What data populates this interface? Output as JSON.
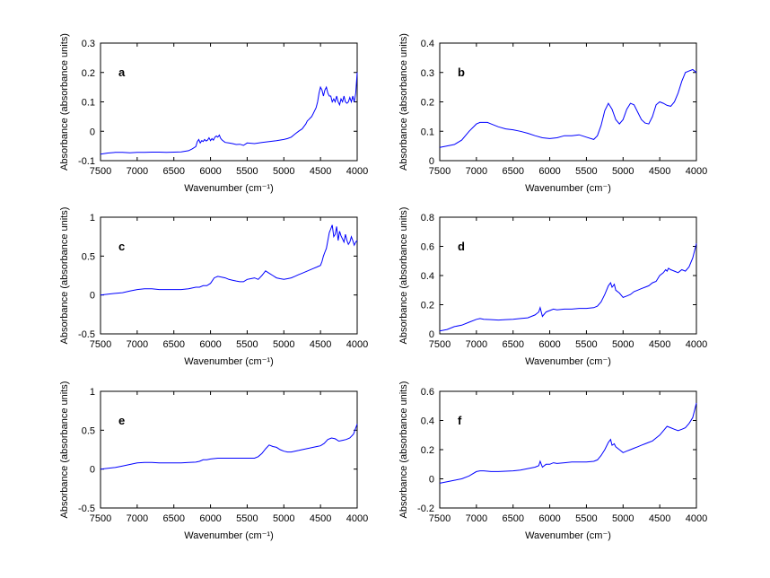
{
  "chart_data": [
    {
      "id": "a",
      "type": "line",
      "panel_label": "a",
      "xlabel": "Wavenumber (cm⁻¹)",
      "ylabel": "Absorbance (absorbance units)",
      "xlim": [
        7500,
        4000
      ],
      "x_reversed": true,
      "ylim": [
        -0.1,
        0.3
      ],
      "xticks": [
        7500,
        7000,
        6500,
        6000,
        5500,
        5000,
        4500,
        4000
      ],
      "xtick_labels": [
        "7500",
        "7000",
        "6500",
        "6000",
        "5500",
        "5000",
        "4500",
        "4000"
      ],
      "yticks": [
        -0.1,
        0,
        0.1,
        0.2,
        0.3
      ],
      "ytick_labels": [
        "-0.1",
        "0",
        "0.1",
        "0.2",
        "0.3"
      ],
      "color": "#0000ff",
      "series": [
        {
          "x": [
            7500,
            7400,
            7300,
            7200,
            7100,
            7000,
            6900,
            6800,
            6700,
            6600,
            6500,
            6400,
            6300,
            6250,
            6200,
            6180,
            6160,
            6140,
            6120,
            6100,
            6080,
            6060,
            6040,
            6020,
            6000,
            5980,
            5960,
            5940,
            5920,
            5900,
            5880,
            5860,
            5840,
            5800,
            5750,
            5700,
            5650,
            5600,
            5550,
            5500,
            5400,
            5300,
            5200,
            5100,
            5000,
            4950,
            4900,
            4850,
            4800,
            4750,
            4700,
            4680,
            4660,
            4640,
            4620,
            4600,
            4580,
            4560,
            4540,
            4520,
            4500,
            4480,
            4460,
            4440,
            4420,
            4400,
            4380,
            4360,
            4340,
            4320,
            4300,
            4280,
            4260,
            4240,
            4220,
            4200,
            4180,
            4160,
            4140,
            4120,
            4100,
            4080,
            4060,
            4040,
            4020,
            4000
          ],
          "y": [
            -0.078,
            -0.074,
            -0.072,
            -0.072,
            -0.073,
            -0.072,
            -0.072,
            -0.071,
            -0.071,
            -0.072,
            -0.071,
            -0.07,
            -0.066,
            -0.06,
            -0.052,
            -0.035,
            -0.028,
            -0.04,
            -0.032,
            -0.035,
            -0.028,
            -0.033,
            -0.03,
            -0.022,
            -0.032,
            -0.025,
            -0.03,
            -0.02,
            -0.016,
            -0.02,
            -0.013,
            -0.025,
            -0.03,
            -0.038,
            -0.04,
            -0.042,
            -0.045,
            -0.044,
            -0.048,
            -0.04,
            -0.042,
            -0.038,
            -0.035,
            -0.032,
            -0.028,
            -0.025,
            -0.02,
            -0.01,
            0.0,
            0.008,
            0.025,
            0.035,
            0.04,
            0.045,
            0.05,
            0.06,
            0.07,
            0.08,
            0.1,
            0.13,
            0.15,
            0.14,
            0.12,
            0.14,
            0.15,
            0.13,
            0.12,
            0.12,
            0.1,
            0.11,
            0.1,
            0.12,
            0.1,
            0.09,
            0.11,
            0.1,
            0.12,
            0.1,
            0.095,
            0.1,
            0.115,
            0.1,
            0.12,
            0.1,
            0.13,
            0.2
          ]
        }
      ]
    },
    {
      "id": "b",
      "type": "line",
      "panel_label": "b",
      "xlabel": "Wavenumber (cm⁻)",
      "ylabel": "Absorbance (absorbance units)",
      "xlim": [
        7500,
        4000
      ],
      "x_reversed": true,
      "ylim": [
        0,
        0.4
      ],
      "xticks": [
        7500,
        7000,
        6500,
        6000,
        5500,
        5000,
        4500,
        4000
      ],
      "xtick_labels": [
        "7500",
        "7000",
        "6500",
        "6000",
        "5500",
        "5000",
        "4500",
        "4000"
      ],
      "yticks": [
        0,
        0.1,
        0.2,
        0.3,
        0.4
      ],
      "ytick_labels": [
        "0",
        "0.1",
        "0.2",
        "0.3",
        "0.4"
      ],
      "color": "#0000ff",
      "series": [
        {
          "x": [
            7500,
            7400,
            7300,
            7200,
            7100,
            7000,
            6950,
            6900,
            6850,
            6800,
            6700,
            6600,
            6500,
            6400,
            6300,
            6200,
            6100,
            6000,
            5900,
            5800,
            5700,
            5600,
            5500,
            5400,
            5350,
            5300,
            5250,
            5200,
            5150,
            5100,
            5050,
            5000,
            4950,
            4900,
            4850,
            4800,
            4750,
            4700,
            4650,
            4600,
            4550,
            4500,
            4450,
            4400,
            4350,
            4300,
            4250,
            4200,
            4150,
            4100,
            4050,
            4000
          ],
          "y": [
            0.045,
            0.05,
            0.055,
            0.07,
            0.1,
            0.125,
            0.13,
            0.13,
            0.13,
            0.125,
            0.115,
            0.108,
            0.105,
            0.1,
            0.093,
            0.085,
            0.078,
            0.075,
            0.078,
            0.085,
            0.085,
            0.088,
            0.08,
            0.072,
            0.085,
            0.12,
            0.17,
            0.195,
            0.175,
            0.14,
            0.125,
            0.14,
            0.175,
            0.195,
            0.19,
            0.165,
            0.14,
            0.128,
            0.125,
            0.15,
            0.19,
            0.2,
            0.195,
            0.188,
            0.185,
            0.2,
            0.23,
            0.27,
            0.3,
            0.305,
            0.31,
            0.3
          ]
        }
      ]
    },
    {
      "id": "c",
      "type": "line",
      "panel_label": "c",
      "xlabel": "Wavenumber (cm⁻¹)",
      "ylabel": "Absorbance (absorbance units)",
      "xlim": [
        7500,
        4000
      ],
      "x_reversed": true,
      "ylim": [
        -0.5,
        1
      ],
      "xticks": [
        7500,
        7000,
        6500,
        6000,
        5500,
        5000,
        4500,
        4000
      ],
      "xtick_labels": [
        "7500",
        "7000",
        "6500",
        "6000",
        "5500",
        "5000",
        "4500",
        "4000"
      ],
      "yticks": [
        -0.5,
        0,
        0.5,
        1
      ],
      "ytick_labels": [
        "-0.5",
        "0",
        "0.5",
        "1"
      ],
      "color": "#0000ff",
      "series": [
        {
          "x": [
            7500,
            7400,
            7300,
            7200,
            7100,
            7000,
            6900,
            6800,
            6700,
            6600,
            6500,
            6400,
            6300,
            6200,
            6150,
            6100,
            6050,
            6000,
            5950,
            5900,
            5850,
            5800,
            5750,
            5700,
            5650,
            5600,
            5550,
            5500,
            5450,
            5400,
            5350,
            5300,
            5250,
            5200,
            5150,
            5100,
            5050,
            5000,
            4950,
            4900,
            4850,
            4800,
            4750,
            4700,
            4650,
            4600,
            4550,
            4500,
            4480,
            4460,
            4440,
            4420,
            4400,
            4380,
            4360,
            4340,
            4320,
            4300,
            4280,
            4260,
            4240,
            4220,
            4200,
            4180,
            4160,
            4140,
            4120,
            4100,
            4080,
            4060,
            4040,
            4020,
            4000
          ],
          "y": [
            0.0,
            0.01,
            0.02,
            0.03,
            0.05,
            0.07,
            0.08,
            0.08,
            0.07,
            0.07,
            0.07,
            0.07,
            0.08,
            0.1,
            0.1,
            0.12,
            0.12,
            0.15,
            0.22,
            0.24,
            0.23,
            0.22,
            0.2,
            0.19,
            0.18,
            0.17,
            0.17,
            0.2,
            0.21,
            0.22,
            0.2,
            0.25,
            0.31,
            0.28,
            0.25,
            0.22,
            0.21,
            0.2,
            0.21,
            0.22,
            0.24,
            0.26,
            0.28,
            0.3,
            0.32,
            0.34,
            0.36,
            0.38,
            0.43,
            0.5,
            0.55,
            0.6,
            0.7,
            0.8,
            0.85,
            0.9,
            0.75,
            0.78,
            0.88,
            0.7,
            0.82,
            0.76,
            0.72,
            0.68,
            0.78,
            0.7,
            0.65,
            0.68,
            0.75,
            0.7,
            0.64,
            0.68,
            0.7
          ]
        }
      ]
    },
    {
      "id": "d",
      "type": "line",
      "panel_label": "d",
      "xlabel": "Wavenumber (cm⁻)",
      "ylabel": "Absorbance (absorbance units)",
      "xlim": [
        7500,
        4000
      ],
      "x_reversed": true,
      "ylim": [
        0,
        0.8
      ],
      "xticks": [
        7500,
        7000,
        6500,
        6000,
        5500,
        5000,
        4500,
        4000
      ],
      "xtick_labels": [
        "7500",
        "7000",
        "6500",
        "6000",
        "5500",
        "5000",
        "4500",
        "4000"
      ],
      "yticks": [
        0,
        0.2,
        0.4,
        0.6,
        0.8
      ],
      "ytick_labels": [
        "0",
        "0.2",
        "0.4",
        "0.6",
        "0.8"
      ],
      "color": "#0000ff",
      "series": [
        {
          "x": [
            7500,
            7400,
            7300,
            7200,
            7100,
            7000,
            6950,
            6900,
            6800,
            6700,
            6600,
            6500,
            6400,
            6300,
            6200,
            6150,
            6130,
            6100,
            6050,
            6000,
            5950,
            5900,
            5800,
            5700,
            5600,
            5500,
            5400,
            5350,
            5300,
            5250,
            5200,
            5170,
            5150,
            5120,
            5100,
            5050,
            5000,
            4950,
            4900,
            4850,
            4800,
            4750,
            4700,
            4650,
            4600,
            4550,
            4500,
            4450,
            4420,
            4400,
            4380,
            4350,
            4300,
            4250,
            4200,
            4150,
            4100,
            4050,
            4000
          ],
          "y": [
            0.02,
            0.03,
            0.05,
            0.06,
            0.08,
            0.1,
            0.105,
            0.1,
            0.098,
            0.095,
            0.098,
            0.1,
            0.105,
            0.11,
            0.13,
            0.15,
            0.18,
            0.12,
            0.15,
            0.16,
            0.17,
            0.165,
            0.17,
            0.17,
            0.175,
            0.175,
            0.18,
            0.19,
            0.22,
            0.27,
            0.33,
            0.35,
            0.32,
            0.34,
            0.3,
            0.28,
            0.25,
            0.26,
            0.27,
            0.29,
            0.3,
            0.31,
            0.32,
            0.33,
            0.35,
            0.36,
            0.4,
            0.42,
            0.44,
            0.43,
            0.45,
            0.44,
            0.43,
            0.42,
            0.44,
            0.43,
            0.46,
            0.52,
            0.62
          ]
        }
      ]
    },
    {
      "id": "e",
      "type": "line",
      "panel_label": "e",
      "xlabel": "Wavenumber (cm⁻¹)",
      "ylabel": "Absorbance (absorbance units)",
      "xlim": [
        7500,
        4000
      ],
      "x_reversed": true,
      "ylim": [
        -0.5,
        1
      ],
      "xticks": [
        7500,
        7000,
        6500,
        6000,
        5500,
        5000,
        4500,
        4000
      ],
      "xtick_labels": [
        "7500",
        "7000",
        "6500",
        "6000",
        "5500",
        "5000",
        "4500",
        "4000"
      ],
      "yticks": [
        -0.5,
        0,
        0.5,
        1
      ],
      "ytick_labels": [
        "-0.5",
        "0",
        "0.5",
        "1"
      ],
      "color": "#0000ff",
      "series": [
        {
          "x": [
            7500,
            7400,
            7300,
            7200,
            7100,
            7000,
            6900,
            6800,
            6700,
            6600,
            6500,
            6400,
            6300,
            6200,
            6150,
            6100,
            6050,
            6000,
            5900,
            5800,
            5700,
            5600,
            5500,
            5400,
            5350,
            5300,
            5250,
            5200,
            5150,
            5100,
            5050,
            5000,
            4950,
            4900,
            4850,
            4800,
            4750,
            4700,
            4650,
            4600,
            4550,
            4500,
            4450,
            4400,
            4350,
            4300,
            4250,
            4200,
            4150,
            4100,
            4050,
            4000
          ],
          "y": [
            0.0,
            0.01,
            0.02,
            0.04,
            0.06,
            0.08,
            0.085,
            0.085,
            0.08,
            0.08,
            0.08,
            0.08,
            0.085,
            0.09,
            0.1,
            0.12,
            0.12,
            0.13,
            0.14,
            0.14,
            0.14,
            0.14,
            0.14,
            0.14,
            0.16,
            0.2,
            0.26,
            0.31,
            0.29,
            0.28,
            0.25,
            0.23,
            0.22,
            0.22,
            0.23,
            0.24,
            0.25,
            0.26,
            0.27,
            0.28,
            0.29,
            0.3,
            0.33,
            0.38,
            0.4,
            0.39,
            0.36,
            0.37,
            0.38,
            0.4,
            0.45,
            0.58
          ]
        }
      ]
    },
    {
      "id": "f",
      "type": "line",
      "panel_label": "f",
      "xlabel": "Wavenumber (cm⁻)",
      "ylabel": "Absorbance (absorbance units)",
      "xlim": [
        7500,
        4000
      ],
      "x_reversed": true,
      "ylim": [
        -0.2,
        0.6
      ],
      "xticks": [
        7500,
        7000,
        6500,
        6000,
        5500,
        5000,
        4500,
        4000
      ],
      "xtick_labels": [
        "7500",
        "7000",
        "6500",
        "6000",
        "5500",
        "5000",
        "4500",
        "4000"
      ],
      "yticks": [
        -0.2,
        0,
        0.2,
        0.4,
        0.6
      ],
      "ytick_labels": [
        "-0.2",
        "0",
        "0.2",
        "0.4",
        "0.6"
      ],
      "color": "#0000ff",
      "series": [
        {
          "x": [
            7500,
            7400,
            7300,
            7200,
            7100,
            7000,
            6950,
            6900,
            6800,
            6700,
            6600,
            6500,
            6400,
            6300,
            6200,
            6150,
            6130,
            6100,
            6050,
            6000,
            5950,
            5900,
            5800,
            5700,
            5600,
            5500,
            5400,
            5350,
            5300,
            5250,
            5200,
            5170,
            5150,
            5120,
            5100,
            5050,
            5000,
            4950,
            4900,
            4850,
            4800,
            4750,
            4700,
            4650,
            4600,
            4550,
            4500,
            4450,
            4400,
            4350,
            4300,
            4250,
            4200,
            4150,
            4100,
            4050,
            4000
          ],
          "y": [
            -0.03,
            -0.02,
            -0.01,
            0.0,
            0.02,
            0.05,
            0.055,
            0.055,
            0.05,
            0.05,
            0.052,
            0.055,
            0.06,
            0.07,
            0.08,
            0.09,
            0.12,
            0.08,
            0.1,
            0.1,
            0.11,
            0.105,
            0.11,
            0.115,
            0.115,
            0.115,
            0.12,
            0.13,
            0.16,
            0.2,
            0.25,
            0.27,
            0.23,
            0.24,
            0.22,
            0.2,
            0.18,
            0.19,
            0.2,
            0.21,
            0.22,
            0.23,
            0.24,
            0.25,
            0.26,
            0.28,
            0.3,
            0.33,
            0.36,
            0.35,
            0.34,
            0.33,
            0.34,
            0.35,
            0.38,
            0.42,
            0.52
          ]
        }
      ]
    }
  ]
}
